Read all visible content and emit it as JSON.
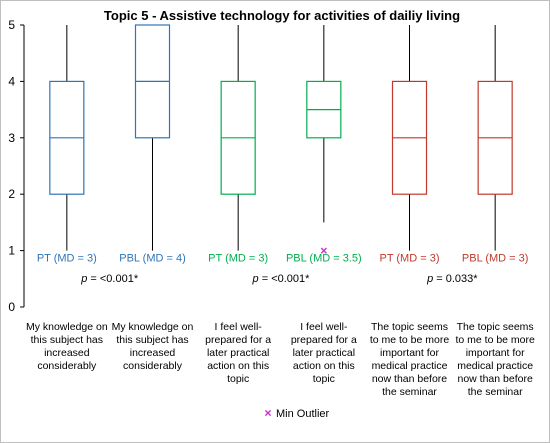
{
  "chart_data": {
    "type": "box",
    "title": "Topic 5 - Assistive technology for activities of dailiy living",
    "ylim": [
      0,
      5
    ],
    "yticks": [
      "0",
      "1",
      "2",
      "3",
      "4",
      "5"
    ],
    "boxes": [
      {
        "group_label": "PT (MD = 3)",
        "min": 1,
        "q1": 2,
        "median": 3,
        "q3": 4,
        "max": 5,
        "color": "#2E75B6",
        "category_lines": [
          "My knowledge on",
          "this subject has",
          "increased",
          "considerably"
        ]
      },
      {
        "group_label": "PBL (MD = 4)",
        "min": 1,
        "q1": 3,
        "median": 4,
        "q3": 5,
        "max": 5,
        "color": "#2E75B6",
        "category_lines": [
          "My knowledge on",
          "this subject has",
          "increased",
          "considerably"
        ]
      },
      {
        "group_label": "PT (MD = 3)",
        "min": 1,
        "q1": 2,
        "median": 3,
        "q3": 4,
        "max": 5,
        "color": "#00B050",
        "category_lines": [
          "I feel well-",
          "prepared for a",
          "later practical",
          "action on this",
          "topic"
        ]
      },
      {
        "group_label": "PBL (MD = 3.5)",
        "min": 1.5,
        "q1": 3,
        "median": 3.5,
        "q3": 4,
        "max": 5,
        "color": "#00B050",
        "outlier": 1,
        "category_lines": [
          "I feel well-",
          "prepared for a",
          "later practical",
          "action on this",
          "topic"
        ]
      },
      {
        "group_label": "PT (MD = 3)",
        "min": 1,
        "q1": 2,
        "median": 3,
        "q3": 4,
        "max": 5,
        "color": "#C0392B",
        "category_lines": [
          "The topic seems",
          "to me to be more",
          "important for",
          "medical practice",
          "now than before",
          "the seminar"
        ]
      },
      {
        "group_label": "PBL (MD = 3)",
        "min": 1,
        "q1": 2,
        "median": 3,
        "q3": 4,
        "max": 5,
        "color": "#C0392B",
        "category_lines": [
          "The topic seems",
          "to me to be more",
          "important for",
          "medical practice",
          "now than before",
          "the seminar"
        ]
      }
    ],
    "p_values": [
      "<0.001*",
      "<0.001*",
      "0.033*"
    ],
    "p_label": "p",
    "p_sep": "=",
    "legend": {
      "marker": "x",
      "label": "Min Outlier",
      "color": "#CC33CC"
    }
  }
}
